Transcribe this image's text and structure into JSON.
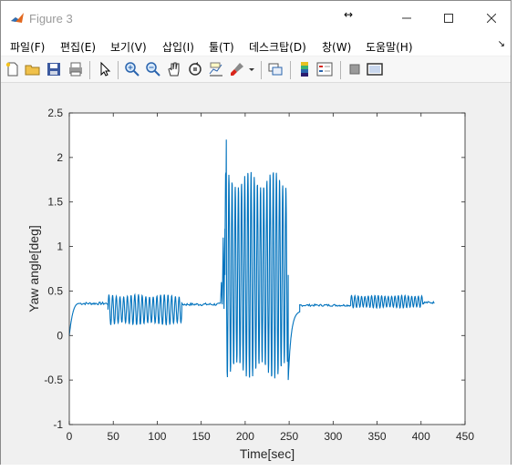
{
  "window": {
    "title": "Figure 3",
    "cursor_glyph": "↔"
  },
  "menu": [
    {
      "label": "파일(F)"
    },
    {
      "label": "편집(E)"
    },
    {
      "label": "보기(V)"
    },
    {
      "label": "삽입(I)"
    },
    {
      "label": "툴(T)"
    },
    {
      "label": "데스크탑(D)"
    },
    {
      "label": "창(W)"
    },
    {
      "label": "도움말(H)"
    }
  ],
  "toolbar": {
    "icons": [
      "new-figure-icon",
      "open-icon",
      "save-icon",
      "print-icon",
      "select-arrow-icon",
      "zoom-in-icon",
      "zoom-out-icon",
      "pan-hand-icon",
      "rotate-3d-icon",
      "data-cursor-icon",
      "brush-icon",
      "brush-dropdown-icon",
      "link-plot-icon",
      "colorbar-icon",
      "legend-icon",
      "hide-plot-tools-icon",
      "show-plot-tools-icon"
    ]
  },
  "chart_data": {
    "type": "line",
    "xlabel": "Time[sec]",
    "ylabel": "Yaw angle[deg]",
    "title": "",
    "xlim": [
      0,
      450
    ],
    "ylim": [
      -1,
      2.5
    ],
    "xticks": [
      0,
      50,
      100,
      150,
      200,
      250,
      300,
      350,
      400,
      450
    ],
    "yticks": [
      -1,
      -0.5,
      0,
      0.5,
      1,
      1.5,
      2,
      2.5
    ],
    "line_color": "#0072BD",
    "series": [
      {
        "segments": [
          {
            "kind": "rise",
            "x_start": 0,
            "x_end": 12,
            "from": 0.0,
            "to": 0.36
          },
          {
            "kind": "flat",
            "x_start": 12,
            "x_end": 44,
            "level": 0.36,
            "noise": 0.015
          },
          {
            "kind": "oscillation",
            "x_start": 44,
            "x_end": 128,
            "center": 0.29,
            "amplitude": 0.17,
            "period": 4.2
          },
          {
            "kind": "flat",
            "x_start": 128,
            "x_end": 172,
            "level": 0.35,
            "noise": 0.015
          },
          {
            "kind": "transition",
            "x_start": 172,
            "x_end": 177,
            "points": [
              [
                172,
                0.36
              ],
              [
                173,
                0.6
              ],
              [
                174,
                0.35
              ],
              [
                175,
                1.1
              ],
              [
                176,
                0.3
              ],
              [
                177,
                1.2
              ]
            ]
          },
          {
            "kind": "oscillation",
            "x_start": 177,
            "x_end": 249,
            "center": 0.68,
            "amplitude": 1.17,
            "period": 3.6,
            "peak_spike": {
              "x": 178.5,
              "y": 2.2
            }
          },
          {
            "kind": "decay",
            "x_start": 249,
            "x_end": 262,
            "from": -0.5,
            "to": 0.28
          },
          {
            "kind": "flat",
            "x_start": 262,
            "x_end": 320,
            "level": 0.34,
            "noise": 0.012
          },
          {
            "kind": "oscillation",
            "x_start": 320,
            "x_end": 402,
            "center": 0.38,
            "amplitude": 0.07,
            "period": 3.8
          },
          {
            "kind": "flat",
            "x_start": 402,
            "x_end": 415,
            "level": 0.37,
            "noise": 0.012
          }
        ]
      }
    ]
  }
}
